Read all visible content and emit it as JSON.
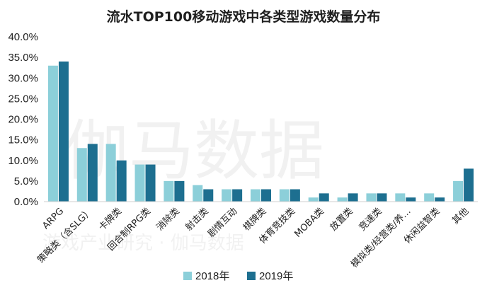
{
  "colors": {
    "s2018": "#8ccfd9",
    "s2019": "#1d6f90",
    "axis": "#d0d0d0",
    "text": "#1f1f1f"
  },
  "chart_data": {
    "type": "bar",
    "title": "流水TOP100移动游戏中各类型游戏数量分布",
    "xlabel": "",
    "ylabel": "",
    "ylim": [
      0,
      40
    ],
    "yticks": [
      "0.0%",
      "5.0%",
      "10.0%",
      "15.0%",
      "20.0%",
      "25.0%",
      "30.0%",
      "35.0%",
      "40.0%"
    ],
    "grid": false,
    "legend_position": "bottom",
    "categories": [
      "ARPG",
      "策略类（含SLG）",
      "卡牌类",
      "回合制RPG类",
      "消除类",
      "射击类",
      "剧情互动",
      "棋牌类",
      "体育竞技类",
      "MOBA类",
      "放置类",
      "竞速类",
      "模拟类/经营类/养…",
      "休闲益智类",
      "其他"
    ],
    "series": [
      {
        "name": "2018年",
        "values": [
          33,
          13,
          14,
          9,
          5,
          4,
          3,
          3,
          3,
          1,
          1,
          2,
          2,
          2,
          5
        ]
      },
      {
        "name": "2019年",
        "values": [
          34,
          14,
          10,
          9,
          5,
          3,
          3,
          3,
          3,
          2,
          2,
          2,
          1,
          1,
          8
        ]
      }
    ]
  },
  "watermark": {
    "main": "伽马数据",
    "sub": "游戏产业研究 · 伽马数据"
  }
}
